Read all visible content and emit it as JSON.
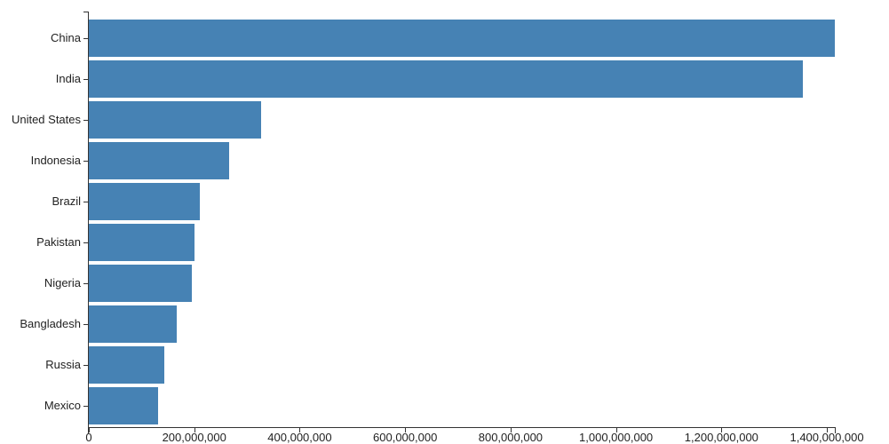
{
  "chart_data": {
    "type": "bar",
    "orientation": "horizontal",
    "title": "",
    "xlabel": "",
    "ylabel": "",
    "categories": [
      "China",
      "India",
      "United States",
      "Indonesia",
      "Brazil",
      "Pakistan",
      "Nigeria",
      "Bangladesh",
      "Russia",
      "Mexico"
    ],
    "values": [
      1415045928,
      1354051854,
      326766748,
      266794980,
      210867954,
      200813818,
      195875237,
      166368149,
      143964709,
      130759074
    ],
    "xlim": [
      0,
      1415045928
    ],
    "x_ticks": [
      0,
      200000000,
      400000000,
      600000000,
      800000000,
      1000000000,
      1200000000,
      1400000000
    ],
    "x_tick_labels": [
      "0",
      "200,000,000",
      "400,000,000",
      "600,000,000",
      "800,000,000",
      "1,000,000,000",
      "1,200,000,000",
      "1,400,000,000"
    ],
    "grid": false,
    "legend": null,
    "colors": {
      "bar": "#4682b4",
      "axis": "#333333",
      "text": "#222222"
    }
  }
}
